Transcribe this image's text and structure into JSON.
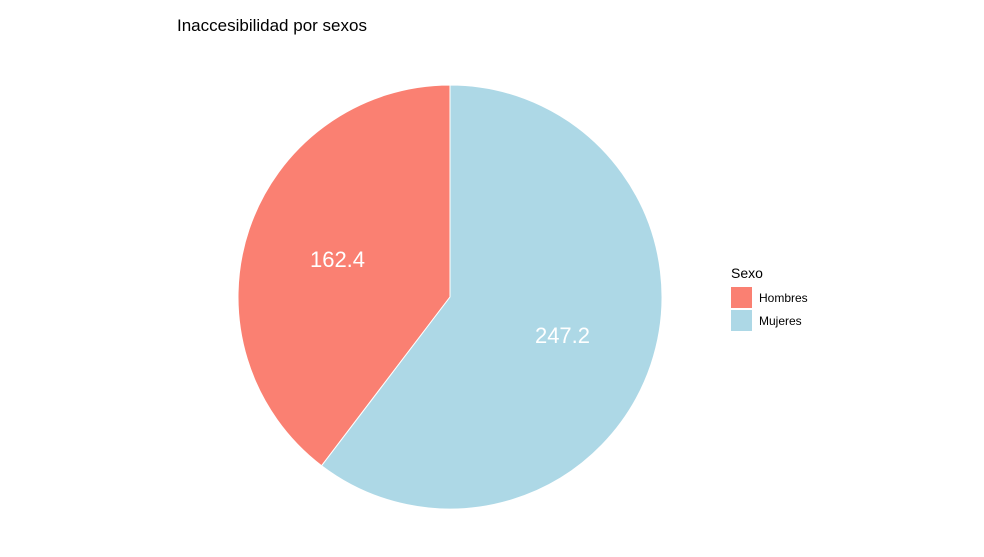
{
  "chart_data": {
    "type": "pie",
    "title": "Inaccesibilidad por sexos",
    "categories": [
      "Hombres",
      "Mujeres"
    ],
    "values": [
      162.4,
      247.2
    ],
    "labels": [
      "162.4",
      "247.2"
    ],
    "colors": [
      "#FA8072",
      "#ADD8E6"
    ],
    "start_angle": "12 o'clock",
    "direction": "counterclockwise",
    "legend": {
      "title": "Sexo",
      "position": "right",
      "items": [
        "Hombres",
        "Mujeres"
      ]
    }
  }
}
